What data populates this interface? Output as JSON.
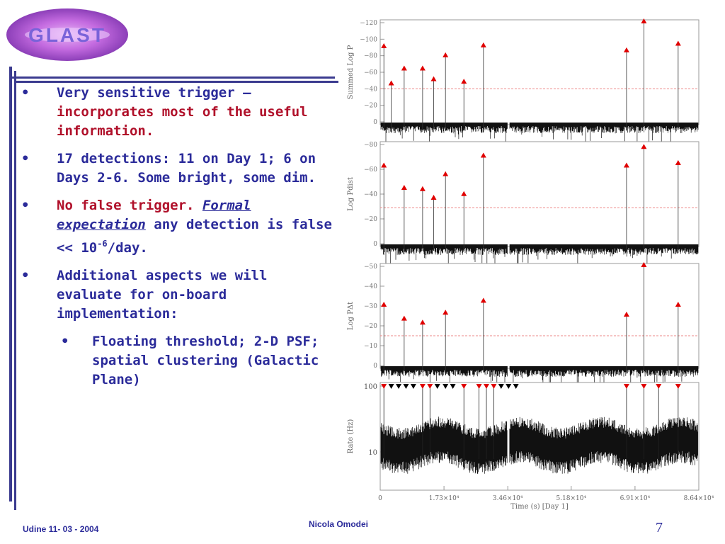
{
  "logo": {
    "text": "GLAST"
  },
  "bullets": [
    {
      "parts": [
        {
          "text": "Very sensitive trigger — ",
          "style": "blue"
        },
        {
          "text": "incorporates most of the useful information.",
          "style": "red"
        }
      ]
    },
    {
      "parts": [
        {
          "text": "17 detections:  11 on Day 1; 6 on Days 2-6.  Some bright, some dim.",
          "style": "blue"
        }
      ]
    },
    {
      "parts": [
        {
          "text": "No false trigger.  ",
          "style": "red"
        },
        {
          "text": "Formal expectation",
          "style": "ul"
        },
        {
          "text": " any detection is false << 10",
          "style": "blue"
        },
        {
          "text": "-6",
          "style": "sup"
        },
        {
          "text": "/day.",
          "style": "blue"
        }
      ]
    },
    {
      "parts": [
        {
          "text": "Additional aspects we will evaluate for on-board implementation:",
          "style": "blue"
        }
      ]
    }
  ],
  "sub_bullets": [
    {
      "parts": [
        {
          "text": "Floating threshold; 2-D PSF; spatial clustering (Galactic Plane)",
          "style": "blue"
        }
      ]
    }
  ],
  "bullet_glyph": "•",
  "footer": {
    "left": "Udine 11- 03 - 2004",
    "center": "Nicola Omodei",
    "page": "7"
  },
  "chart_data": [
    {
      "type": "line",
      "ylabel": "Summed Log P",
      "ylim": [
        -120,
        0
      ],
      "yticks": [
        0,
        -20,
        -40,
        -60,
        -80,
        -100,
        -120
      ],
      "ytick_labels": [
        "0",
        "−20",
        "−40",
        "−60",
        "−80",
        "−100",
        "−120"
      ],
      "threshold": -40,
      "markers": [
        {
          "x": 1000,
          "y": -90
        },
        {
          "x": 3000,
          "y": -45
        },
        {
          "x": 6500,
          "y": -63
        },
        {
          "x": 11500,
          "y": -63
        },
        {
          "x": 14500,
          "y": -50
        },
        {
          "x": 17700,
          "y": -79
        },
        {
          "x": 22700,
          "y": -47
        },
        {
          "x": 28000,
          "y": -91
        },
        {
          "x": 66800,
          "y": -85
        },
        {
          "x": 71500,
          "y": -120
        },
        {
          "x": 80800,
          "y": -93
        }
      ]
    },
    {
      "type": "line",
      "ylabel": "Log Pdist",
      "ylim": [
        -80,
        0
      ],
      "yticks": [
        0,
        -20,
        -40,
        -60,
        -80
      ],
      "ytick_labels": [
        "0",
        "−20",
        "−40",
        "−60",
        "−80"
      ],
      "threshold": -29,
      "markers": [
        {
          "x": 1000,
          "y": -62
        },
        {
          "x": 6500,
          "y": -44
        },
        {
          "x": 11500,
          "y": -43
        },
        {
          "x": 14500,
          "y": -36
        },
        {
          "x": 17700,
          "y": -55
        },
        {
          "x": 22700,
          "y": -39
        },
        {
          "x": 28000,
          "y": -70
        },
        {
          "x": 66800,
          "y": -62
        },
        {
          "x": 71500,
          "y": -77
        },
        {
          "x": 80800,
          "y": -64
        }
      ]
    },
    {
      "type": "line",
      "ylabel": "Log PΔt",
      "ylim": [
        -50,
        0
      ],
      "yticks": [
        0,
        -10,
        -20,
        -30,
        -40,
        -50
      ],
      "ytick_labels": [
        "0",
        "−10",
        "−20",
        "−30",
        "−40",
        "−50"
      ],
      "threshold": -15,
      "markers": [
        {
          "x": 1000,
          "y": -30
        },
        {
          "x": 6500,
          "y": -23
        },
        {
          "x": 11500,
          "y": -21
        },
        {
          "x": 17700,
          "y": -26
        },
        {
          "x": 28000,
          "y": -32
        },
        {
          "x": 66800,
          "y": -25
        },
        {
          "x": 71500,
          "y": -50
        },
        {
          "x": 80800,
          "y": -30
        }
      ]
    },
    {
      "type": "line",
      "ylabel": "Rate (Hz)",
      "yscale": "log",
      "ytick_labels": [
        "100",
        "10"
      ],
      "xlabel": "Time (s)  [Day 1]",
      "xlim": [
        0,
        86400
      ],
      "xtick_labels": [
        "0",
        "1.73×10⁴",
        "3.46×10⁴",
        "5.18×10⁴",
        "6.91×10⁴",
        "8.64×10⁴"
      ],
      "top_markers": [
        {
          "x": 1000,
          "color": "red"
        },
        {
          "x": 3000,
          "color": "black"
        },
        {
          "x": 5000,
          "color": "black"
        },
        {
          "x": 7000,
          "color": "black"
        },
        {
          "x": 9000,
          "color": "black"
        },
        {
          "x": 11500,
          "color": "red"
        },
        {
          "x": 13500,
          "color": "red"
        },
        {
          "x": 15500,
          "color": "black"
        },
        {
          "x": 17700,
          "color": "black"
        },
        {
          "x": 19700,
          "color": "black"
        },
        {
          "x": 22700,
          "color": "red"
        },
        {
          "x": 26800,
          "color": "red"
        },
        {
          "x": 28800,
          "color": "red"
        },
        {
          "x": 30800,
          "color": "red"
        },
        {
          "x": 32800,
          "color": "black"
        },
        {
          "x": 34800,
          "color": "black"
        },
        {
          "x": 36800,
          "color": "black"
        },
        {
          "x": 66800,
          "color": "red"
        },
        {
          "x": 71500,
          "color": "red"
        },
        {
          "x": 75500,
          "color": "red"
        },
        {
          "x": 80800,
          "color": "red"
        }
      ]
    }
  ]
}
